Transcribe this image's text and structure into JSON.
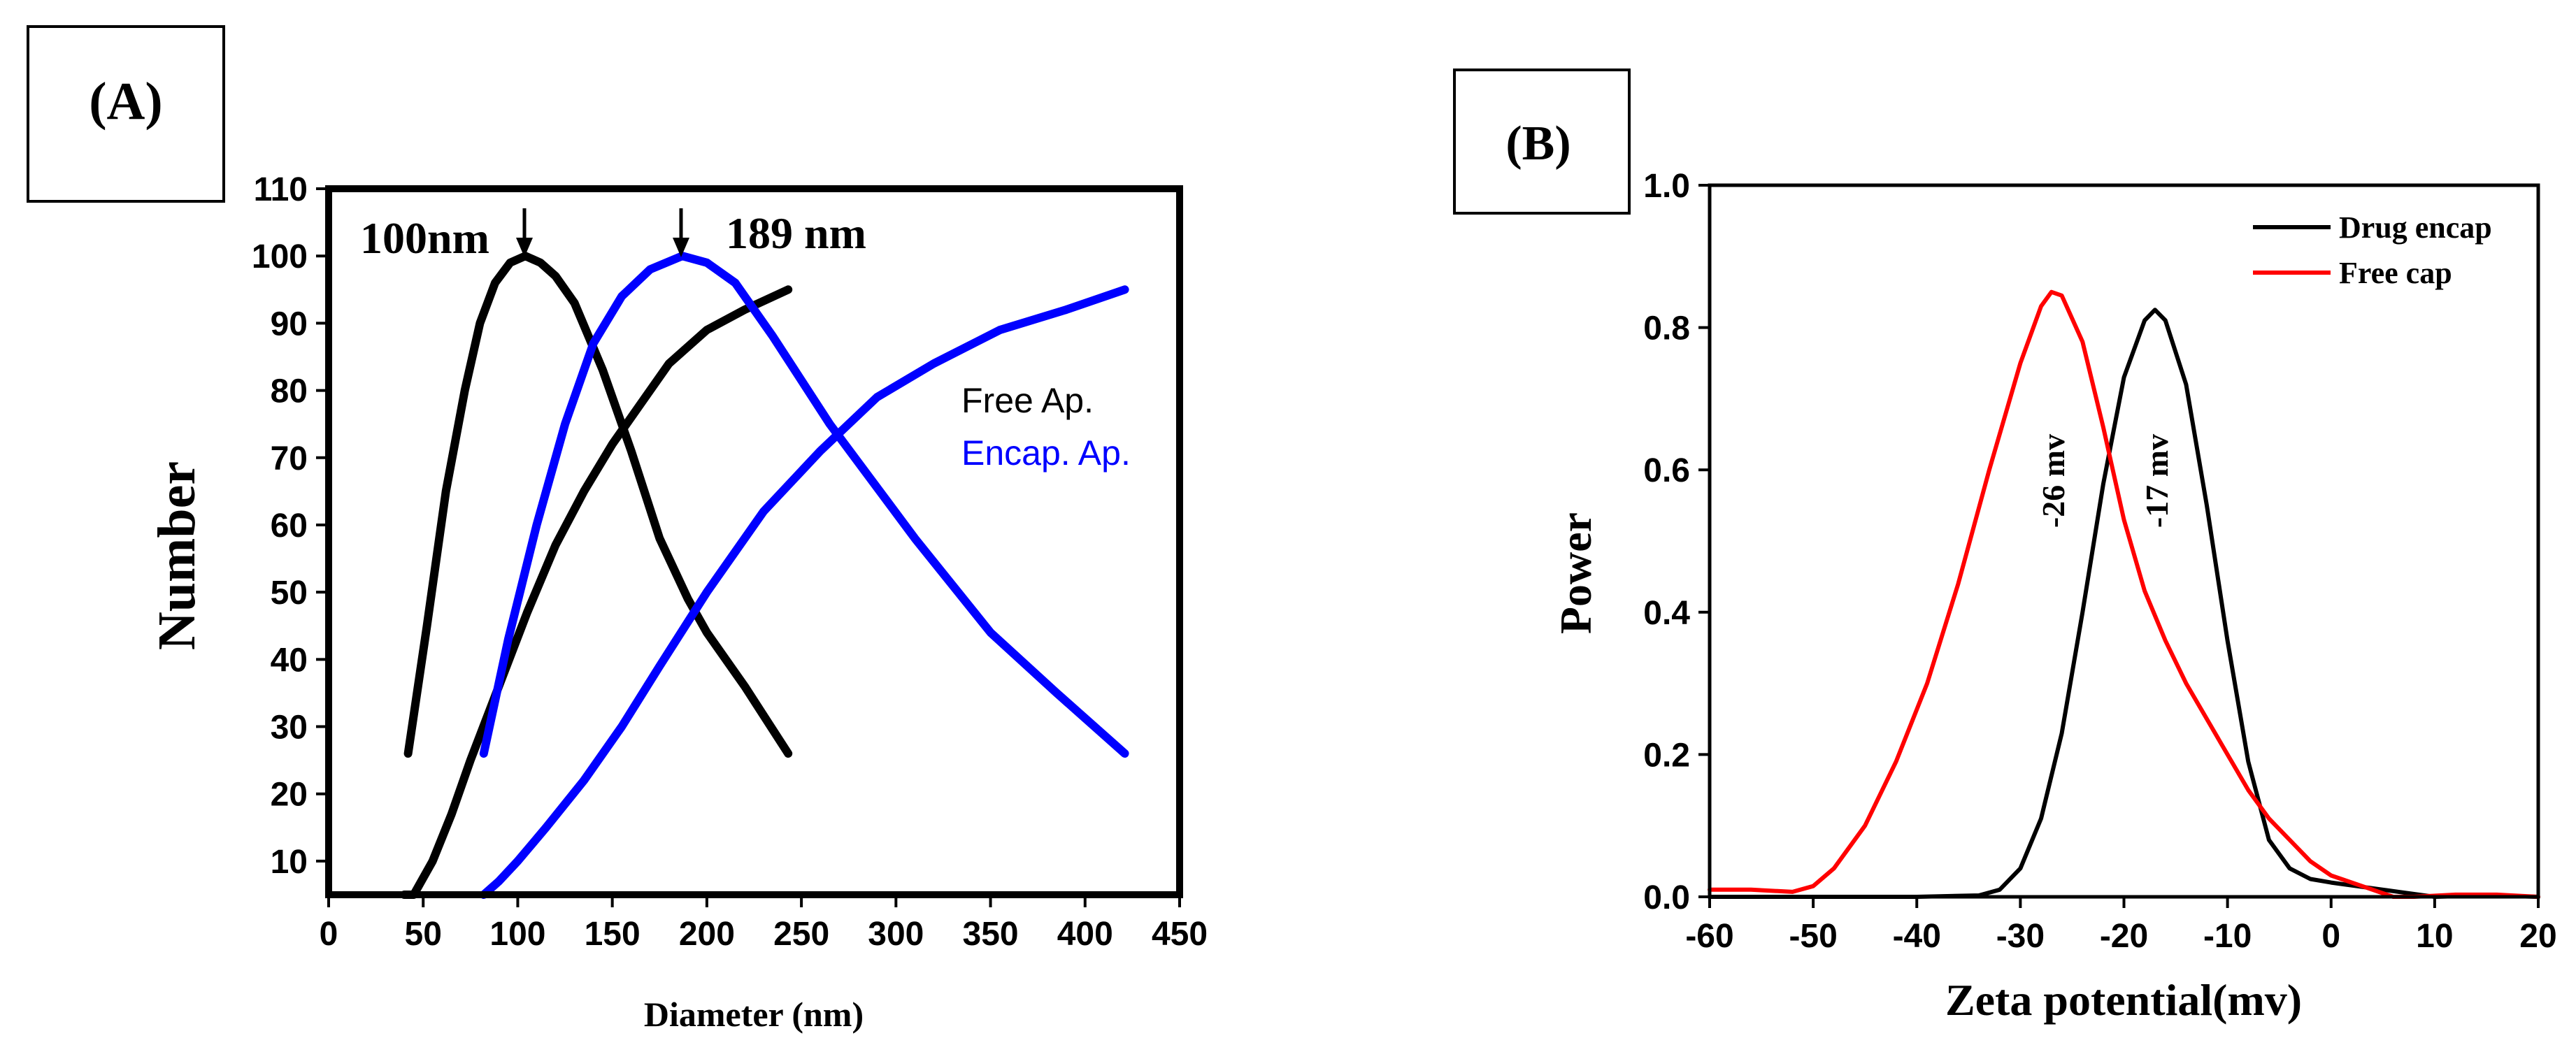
{
  "chart_data": [
    {
      "type": "line",
      "panel_label": "(A)",
      "xlabel": "Diameter (nm)",
      "ylabel": "Number",
      "xlim": [
        0,
        450
      ],
      "ylim": [
        5,
        110
      ],
      "xticks": [
        "0",
        "50",
        "100",
        "150",
        "200",
        "250",
        "300",
        "350",
        "400",
        "450"
      ],
      "yticks": [
        "10",
        "20",
        "30",
        "40",
        "50",
        "60",
        "70",
        "80",
        "90",
        "100",
        "110"
      ],
      "legend": {
        "position": "center-right",
        "entries": [
          {
            "label": "Free Ap.",
            "color": "#000000"
          },
          {
            "label": "Encap. Ap.",
            "color": "#0000ff"
          }
        ]
      },
      "annotations": [
        {
          "text": "100nm",
          "x": 103,
          "y": 100
        },
        {
          "text": "189 nm",
          "x": 187,
          "y": 100
        }
      ],
      "series": [
        {
          "name": "Free Ap. (distribution)",
          "color": "#000000",
          "x": [
            42,
            52,
            62,
            72,
            80,
            88,
            96,
            104,
            112,
            120,
            130,
            145,
            160,
            175,
            190,
            200,
            220,
            243
          ],
          "y": [
            26,
            45,
            65,
            80,
            90,
            96,
            99,
            100,
            99,
            97,
            93,
            83,
            71,
            58,
            49,
            44,
            36,
            26
          ]
        },
        {
          "name": "Free Ap. (cumulative)",
          "color": "#000000",
          "x": [
            40,
            45,
            55,
            65,
            75,
            90,
            105,
            120,
            135,
            150,
            165,
            180,
            200,
            220,
            243
          ],
          "y": [
            5,
            5,
            10,
            17,
            25,
            36,
            47,
            57,
            65,
            72,
            78,
            84,
            89,
            92,
            95
          ]
        },
        {
          "name": "Encap. Ap. (distribution)",
          "color": "#0000ff",
          "x": [
            82,
            95,
            110,
            125,
            140,
            155,
            170,
            187,
            200,
            215,
            235,
            265,
            310,
            350,
            385,
            421
          ],
          "y": [
            26,
            43,
            60,
            75,
            87,
            94,
            98,
            100,
            99,
            96,
            88,
            75,
            58,
            44,
            35,
            26
          ]
        },
        {
          "name": "Encap. Ap. (cumulative)",
          "color": "#0000ff",
          "x": [
            82,
            90,
            100,
            115,
            135,
            155,
            175,
            200,
            230,
            260,
            290,
            320,
            355,
            390,
            421
          ],
          "y": [
            5,
            7,
            10,
            15,
            22,
            30,
            39,
            50,
            62,
            71,
            79,
            84,
            89,
            92,
            95
          ]
        }
      ]
    },
    {
      "type": "line",
      "panel_label": "(B)",
      "xlabel": "Zeta potential(mv)",
      "ylabel": "Power",
      "xlim": [
        -60,
        20
      ],
      "ylim": [
        0,
        1.0
      ],
      "xticks": [
        "-60",
        "-50",
        "-40",
        "-30",
        "-20",
        "-10",
        "0",
        "10",
        "20"
      ],
      "yticks": [
        "0.0",
        "0.2",
        "0.4",
        "0.6",
        "0.8",
        "1.0"
      ],
      "legend": {
        "position": "top-right",
        "entries": [
          {
            "label": "Drug encap",
            "color": "#000000"
          },
          {
            "label": "Free cap",
            "color": "#ff0000"
          }
        ]
      },
      "annotations": [
        {
          "text": "-26 mv",
          "x": -26,
          "y": 0.57
        },
        {
          "text": "-17 mv",
          "x": -16,
          "y": 0.58
        }
      ],
      "series": [
        {
          "name": "Drug encap",
          "color": "#000000",
          "x": [
            -60,
            -40,
            -34,
            -32,
            -30,
            -28,
            -26,
            -24,
            -22,
            -20,
            -18,
            -17,
            -16,
            -14,
            -12,
            -10,
            -8,
            -6,
            -4,
            -2,
            0,
            5,
            10,
            15,
            20
          ],
          "y": [
            0.0,
            0.0,
            0.002,
            0.01,
            0.04,
            0.11,
            0.23,
            0.4,
            0.58,
            0.73,
            0.81,
            0.825,
            0.81,
            0.72,
            0.55,
            0.36,
            0.19,
            0.08,
            0.04,
            0.025,
            0.02,
            0.01,
            0.0,
            0.002,
            0.0
          ]
        },
        {
          "name": "Free cap",
          "color": "#ff0000",
          "x": [
            -60,
            -56,
            -52,
            -50,
            -48,
            -45,
            -42,
            -39,
            -36,
            -33,
            -30,
            -28,
            -27,
            -26,
            -24,
            -22,
            -20,
            -18,
            -16,
            -14,
            -12,
            -10,
            -8,
            -6,
            -4,
            -2,
            0,
            3,
            6,
            8,
            12,
            16,
            20
          ],
          "y": [
            0.01,
            0.01,
            0.007,
            0.015,
            0.04,
            0.1,
            0.19,
            0.3,
            0.44,
            0.6,
            0.75,
            0.83,
            0.85,
            0.845,
            0.78,
            0.66,
            0.53,
            0.43,
            0.36,
            0.3,
            0.25,
            0.2,
            0.15,
            0.11,
            0.08,
            0.05,
            0.03,
            0.015,
            0.0,
            0.0,
            0.003,
            0.003,
            0.0
          ]
        }
      ]
    }
  ]
}
